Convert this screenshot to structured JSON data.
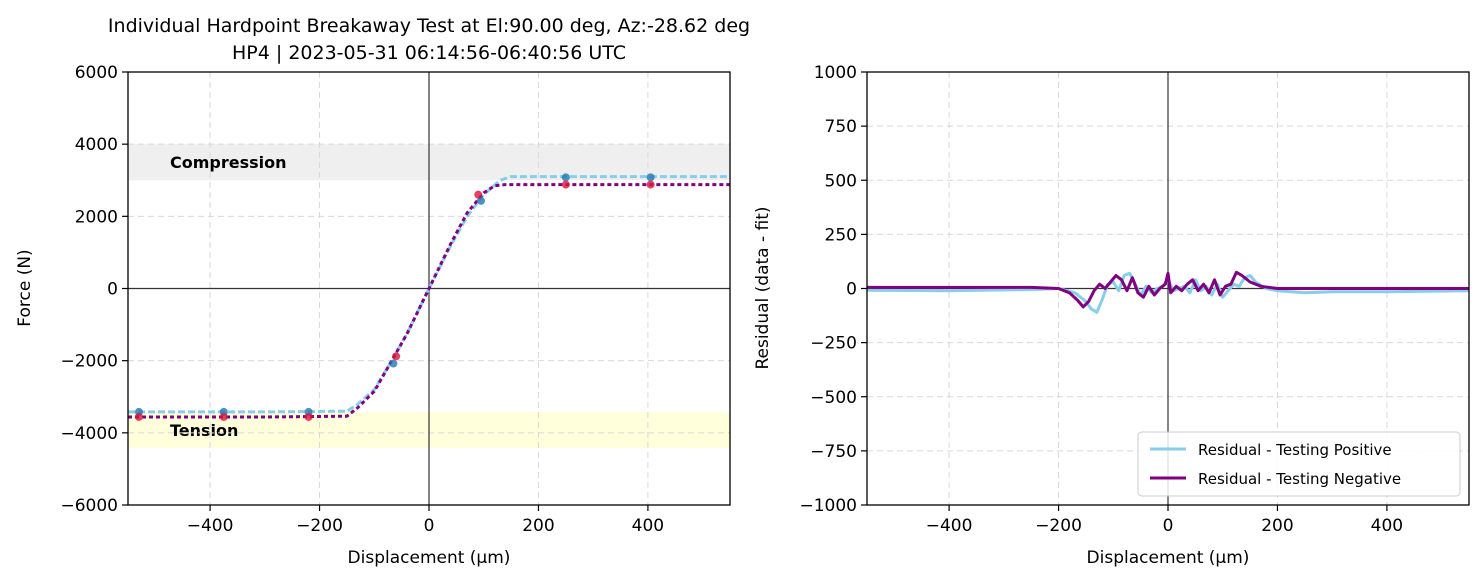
{
  "figure": {
    "title_line1": "Individual Hardpoint Breakaway Test at El:90.00 deg, Az:-28.62 deg",
    "title_line2": "HP4 | 2023-05-31 06:14:56-06:40:56 UTC"
  },
  "colors": {
    "positive": "#87ceeb",
    "negative": "#800080",
    "positive_points": "#1f77b4",
    "negative_points": "#dc143c",
    "compression_band": "#e8e8e8",
    "tension_band": "#ffffcc"
  },
  "chart_data": [
    {
      "type": "line",
      "xlabel": "Displacement (µm)",
      "ylabel": "Force (N)",
      "xlim": [
        -550,
        550
      ],
      "ylim": [
        -6000,
        6000
      ],
      "xticks": [
        -400,
        -200,
        0,
        200,
        400
      ],
      "yticks": [
        -6000,
        -4000,
        -2000,
        0,
        2000,
        4000,
        6000
      ],
      "grid": true,
      "bands": [
        {
          "label": "Compression",
          "y0": 3000,
          "y1": 4000,
          "color": "#e8e8e8"
        },
        {
          "label": "Tension",
          "y0": -4420,
          "y1": -3420,
          "color": "#ffffcc"
        }
      ],
      "series": [
        {
          "style": "dashed",
          "color": "#87ceeb",
          "x": [
            -550,
            -300,
            -150,
            -130,
            -100,
            -70,
            -40,
            0,
            40,
            70,
            100,
            130,
            150,
            300,
            550
          ],
          "y": [
            -3420,
            -3420,
            -3400,
            -3200,
            -2800,
            -2050,
            -1250,
            0,
            1200,
            2000,
            2600,
            3000,
            3100,
            3100,
            3100
          ]
        },
        {
          "style": "dotted",
          "color": "#800080",
          "x": [
            -550,
            -300,
            -150,
            -130,
            -100,
            -70,
            -40,
            0,
            40,
            70,
            100,
            120,
            140,
            300,
            550
          ],
          "y": [
            -3560,
            -3560,
            -3540,
            -3300,
            -2850,
            -2050,
            -1250,
            0,
            1250,
            2100,
            2650,
            2850,
            2880,
            2880,
            2880
          ]
        }
      ],
      "points": [
        {
          "series": "positive",
          "x": [
            -530,
            -375,
            -220,
            -65,
            95,
            250,
            405
          ],
          "y": [
            -3420,
            -3420,
            -3420,
            -2080,
            2430,
            3080,
            3080
          ]
        },
        {
          "series": "negative",
          "x": [
            -530,
            -375,
            -220,
            -60,
            90,
            250,
            405
          ],
          "y": [
            -3560,
            -3560,
            -3560,
            -1880,
            2600,
            2880,
            2880
          ]
        }
      ]
    },
    {
      "type": "line",
      "xlabel": "Displacement (µm)",
      "ylabel": "Residual (data - fit)",
      "xlim": [
        -550,
        550
      ],
      "ylim": [
        -1000,
        1000
      ],
      "xticks": [
        -400,
        -200,
        0,
        200,
        400
      ],
      "yticks": [
        -1000,
        -750,
        -500,
        -250,
        0,
        250,
        500,
        750,
        1000
      ],
      "grid": true,
      "legend": "lower-right",
      "series": [
        {
          "name": "Residual - Testing Positive",
          "color": "#87ceeb",
          "x": [
            -550,
            -400,
            -250,
            -200,
            -170,
            -150,
            -140,
            -130,
            -120,
            -110,
            -100,
            -90,
            -80,
            -70,
            -60,
            -50,
            -40,
            -30,
            -20,
            -10,
            0,
            10,
            20,
            30,
            40,
            50,
            60,
            70,
            80,
            90,
            100,
            110,
            120,
            130,
            140,
            150,
            160,
            180,
            200,
            250,
            300,
            400,
            550
          ],
          "y": [
            -8,
            -10,
            -5,
            0,
            -20,
            -60,
            -95,
            -110,
            -50,
            20,
            30,
            -10,
            60,
            70,
            20,
            -30,
            10,
            -20,
            0,
            10,
            40,
            -10,
            0,
            10,
            -20,
            40,
            -10,
            10,
            -30,
            20,
            -40,
            -10,
            20,
            10,
            50,
            60,
            30,
            0,
            -10,
            -20,
            -15,
            -15,
            -10
          ]
        },
        {
          "name": "Residual - Testing Negative",
          "color": "#800080",
          "x": [
            -550,
            -400,
            -250,
            -200,
            -180,
            -165,
            -155,
            -145,
            -135,
            -125,
            -115,
            -105,
            -95,
            -85,
            -75,
            -65,
            -55,
            -45,
            -35,
            -25,
            -15,
            -5,
            0,
            5,
            15,
            25,
            35,
            45,
            55,
            65,
            75,
            85,
            95,
            105,
            115,
            125,
            135,
            150,
            170,
            200,
            300,
            400,
            550
          ],
          "y": [
            5,
            5,
            5,
            0,
            -20,
            -55,
            -85,
            -60,
            -10,
            20,
            0,
            30,
            60,
            40,
            -10,
            50,
            -20,
            -40,
            10,
            -30,
            0,
            20,
            70,
            -20,
            10,
            -10,
            20,
            40,
            -10,
            20,
            -20,
            40,
            -30,
            10,
            20,
            75,
            60,
            30,
            10,
            0,
            0,
            0,
            0
          ]
        }
      ]
    }
  ]
}
